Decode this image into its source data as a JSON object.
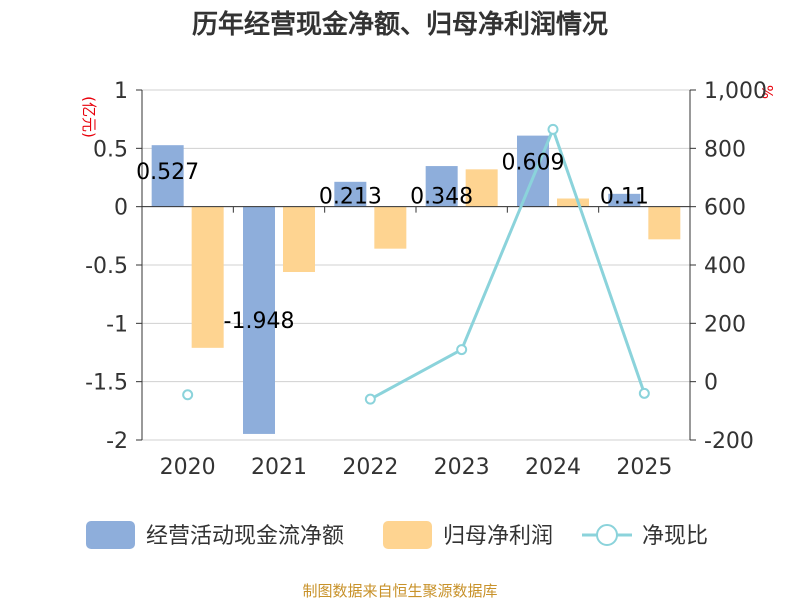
{
  "chart_data": {
    "type": "bar+line",
    "title": "历年经营现金净额、归母净利润情况",
    "categories": [
      "2020",
      "2021",
      "2022",
      "2023",
      "2024",
      "2025"
    ],
    "left_axis": {
      "unit": "(亿元)",
      "range": [
        -2,
        1
      ],
      "ticks": [
        1,
        0.5,
        0,
        -0.5,
        -1,
        -1.5,
        -2
      ],
      "tick_labels": [
        "1",
        "0.5",
        "0",
        "-0.5",
        "-1",
        "-1.5",
        "-2"
      ]
    },
    "right_axis": {
      "unit": "%",
      "range": [
        -200,
        1000
      ],
      "ticks": [
        1000,
        800,
        600,
        400,
        200,
        0,
        -200
      ],
      "tick_labels": [
        "1,000",
        "800",
        "600",
        "400",
        "200",
        "0",
        "-200"
      ]
    },
    "series": [
      {
        "name": "经营活动现金流净额",
        "type": "bar",
        "axis": "left",
        "color": "#8eaedb",
        "values": [
          0.527,
          -1.948,
          0.213,
          0.348,
          0.609,
          0.11
        ],
        "labels": [
          "0.527",
          "-1.948",
          "0.213",
          "0.348",
          "0.609",
          "0.11"
        ]
      },
      {
        "name": "归母净利润",
        "type": "bar",
        "axis": "left",
        "color": "#fed491",
        "values": [
          -1.21,
          -0.56,
          -0.36,
          0.32,
          0.07,
          -0.28
        ]
      },
      {
        "name": "净现比",
        "type": "line",
        "axis": "right",
        "color": "#8bd3db",
        "values": [
          -45,
          null,
          -60,
          110,
          865,
          -40
        ]
      }
    ],
    "source": "制图数据来自恒生聚源数据库"
  }
}
